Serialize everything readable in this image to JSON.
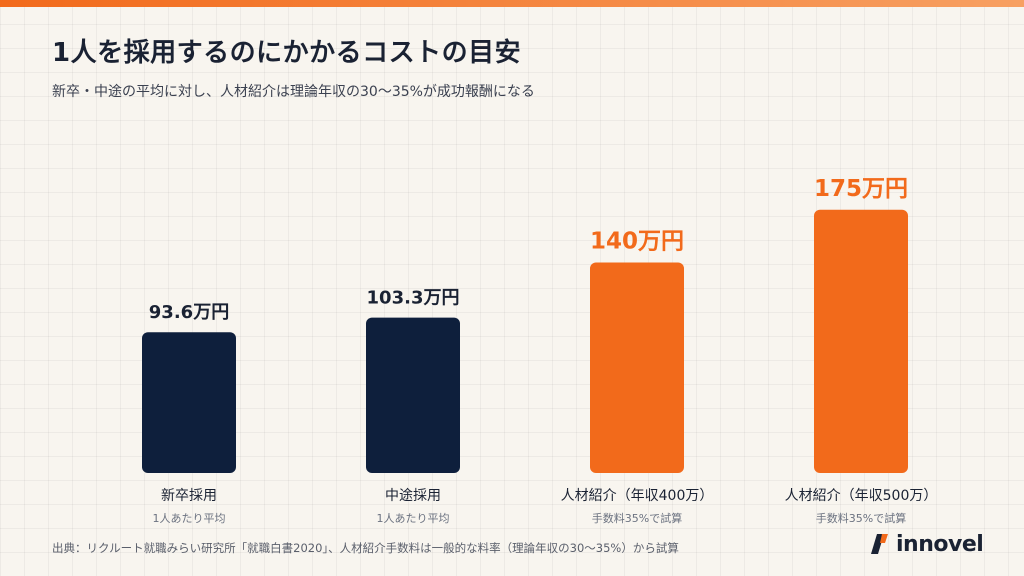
{
  "header": {
    "title": "1人を採用するのにかかるコストの目安",
    "subtitle": "新卒・中途の平均に対し、人材紹介は理論年収の30〜35%が成功報酬になる"
  },
  "footer": {
    "source": "出典：リクルート就職みらい研究所「就職白書2020」、人材紹介手数料は一般的な料率（理論年収の30〜35%）から試算",
    "logo_text": "innovel"
  },
  "colors": {
    "navy": "#0e1f3c",
    "orange": "#f26a1b",
    "text_dark": "#1a2233",
    "text_muted": "#6b7280"
  },
  "chart_data": {
    "type": "bar",
    "unit": "万円",
    "categories": [
      "新卒採用",
      "中途採用",
      "人材紹介（年収400万）",
      "人材紹介（年収500万）"
    ],
    "sublabels": [
      "1人あたり平均",
      "1人あたり平均",
      "手数料35%で試算",
      "手数料35%で試算"
    ],
    "values": [
      93.6,
      103.3,
      140,
      175
    ],
    "value_labels": [
      "93.6万円",
      "103.3万円",
      "140万円",
      "175万円"
    ],
    "bar_colors": [
      "#0e1f3c",
      "#0e1f3c",
      "#f26a1b",
      "#f26a1b"
    ],
    "label_colors": [
      "#1a2233",
      "#1a2233",
      "#f26a1b",
      "#f26a1b"
    ],
    "ylim": [
      0,
      200
    ],
    "grid": false,
    "legend": "none"
  }
}
